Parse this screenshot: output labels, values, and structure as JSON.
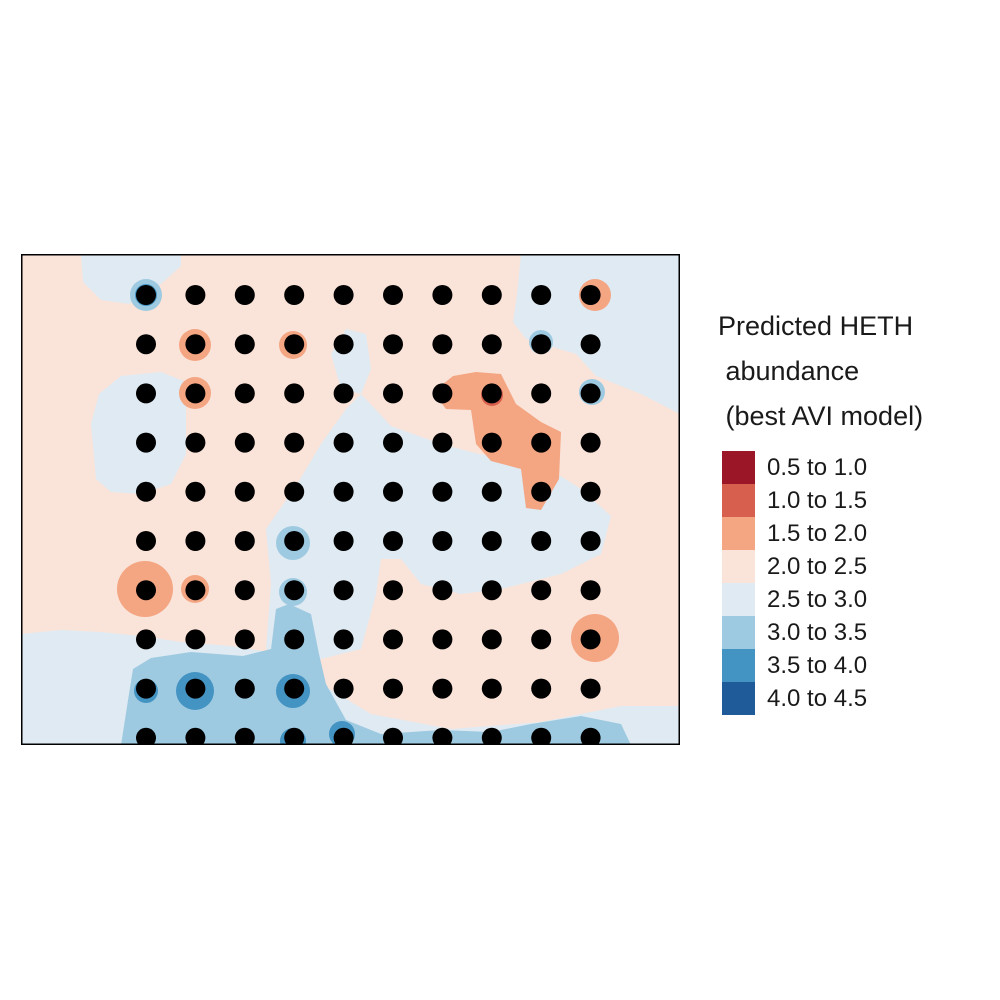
{
  "map": {
    "legend_title_lines": [
      "Predicted HETH",
      " abundance",
      " (best AVI model)"
    ],
    "legend": [
      {
        "label": "0.5 to 1.0",
        "color": "#9b1627"
      },
      {
        "label": "1.0 to 1.5",
        "color": "#d6604d"
      },
      {
        "label": "1.5 to 2.0",
        "color": "#f4a582"
      },
      {
        "label": "2.0 to 2.5",
        "color": "#fae4da"
      },
      {
        "label": "2.5 to 3.0",
        "color": "#dfeaf2"
      },
      {
        "label": "3.0 to 3.5",
        "color": "#9ecae1"
      },
      {
        "label": "3.5 to 4.0",
        "color": "#4393c3"
      },
      {
        "label": "4.0 to 4.5",
        "color": "#1f5b98"
      }
    ],
    "background_class": "2.0 to 2.5",
    "point_color": "#000000",
    "sample_grid": {
      "columns": 10,
      "rows": 10
    },
    "regions": [
      {
        "class": "2.5 to 3.0",
        "name": "northeast-high-zone"
      },
      {
        "class": "2.5 to 3.0",
        "name": "west-high-zone"
      },
      {
        "class": "2.5 to 3.0",
        "name": "central-high-zone"
      },
      {
        "class": "2.5 to 3.0",
        "name": "southwest-high-zone"
      },
      {
        "class": "3.0 to 3.5",
        "name": "southern-very-high-zone"
      },
      {
        "class": "1.5 to 2.0",
        "name": "northeast-low-patch"
      },
      {
        "class": "1.5 to 2.0",
        "name": "west-low-spot"
      },
      {
        "class": "1.5 to 2.0",
        "name": "east-low-spot"
      },
      {
        "class": "3.5 to 4.0",
        "name": "southern-peak-spot"
      }
    ]
  }
}
